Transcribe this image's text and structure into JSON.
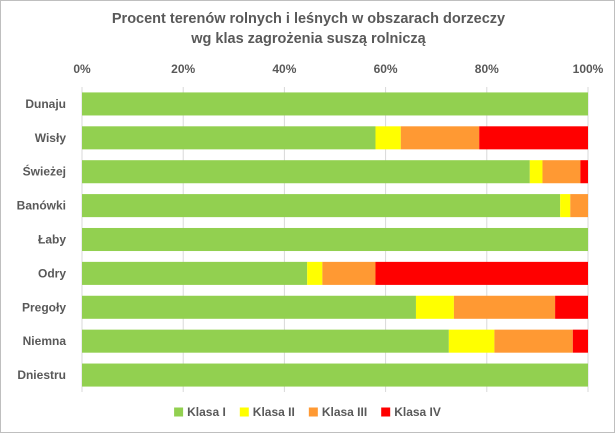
{
  "chart_data": {
    "type": "bar",
    "orientation": "horizontal",
    "stacked": true,
    "title": [
      "Procent terenów rolnych i leśnych w obszarach dorzeczy",
      "wg klas zagrożenia suszą rolniczą"
    ],
    "xlim": [
      0,
      100
    ],
    "x_ticks": [
      "0%",
      "20%",
      "40%",
      "60%",
      "80%",
      "100%"
    ],
    "x_tick_values": [
      0,
      20,
      40,
      60,
      80,
      100
    ],
    "x_axis_position": "top",
    "grid": true,
    "legend_position": "bottom",
    "categories": [
      "Dunaju",
      "Wisły",
      "Świeżej",
      "Banówki",
      "Łaby",
      "Odry",
      "Pregoły",
      "Niemna",
      "Dniestru"
    ],
    "series": [
      {
        "name": "Klasa I",
        "color": "#92d050",
        "values": [
          100,
          58,
          88.5,
          94.5,
          100,
          44.5,
          66,
          72.5,
          100
        ]
      },
      {
        "name": "Klasa II",
        "color": "#ffff00",
        "values": [
          0,
          5,
          2.5,
          2,
          0,
          3,
          7.5,
          9,
          0
        ]
      },
      {
        "name": "Klasa III",
        "color": "#ff9933",
        "values": [
          0,
          15.5,
          7.5,
          3.5,
          0,
          10.5,
          20,
          15.5,
          0
        ]
      },
      {
        "name": "Klasa IV",
        "color": "#ff0000",
        "values": [
          0,
          21.5,
          1.5,
          0,
          0,
          42,
          6.5,
          3,
          0
        ]
      }
    ]
  }
}
